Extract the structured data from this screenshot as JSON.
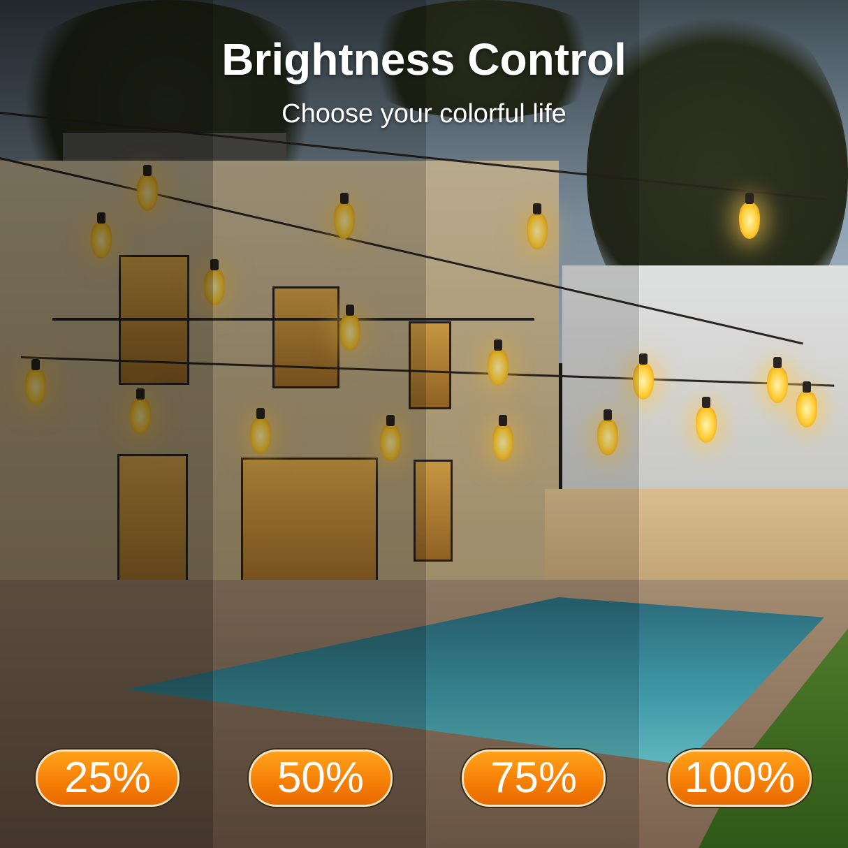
{
  "header": {
    "title": "Brightness Control",
    "subtitle": "Choose your colorful life"
  },
  "brightness_levels": [
    {
      "label": "25%",
      "value": 25
    },
    {
      "label": "50%",
      "value": 50
    },
    {
      "label": "75%",
      "value": 75
    },
    {
      "label": "100%",
      "value": 100
    }
  ],
  "colors": {
    "badge": "#f78a0a",
    "badge_border": "#eee4c8",
    "bulb_glow": "#ffcc33"
  }
}
